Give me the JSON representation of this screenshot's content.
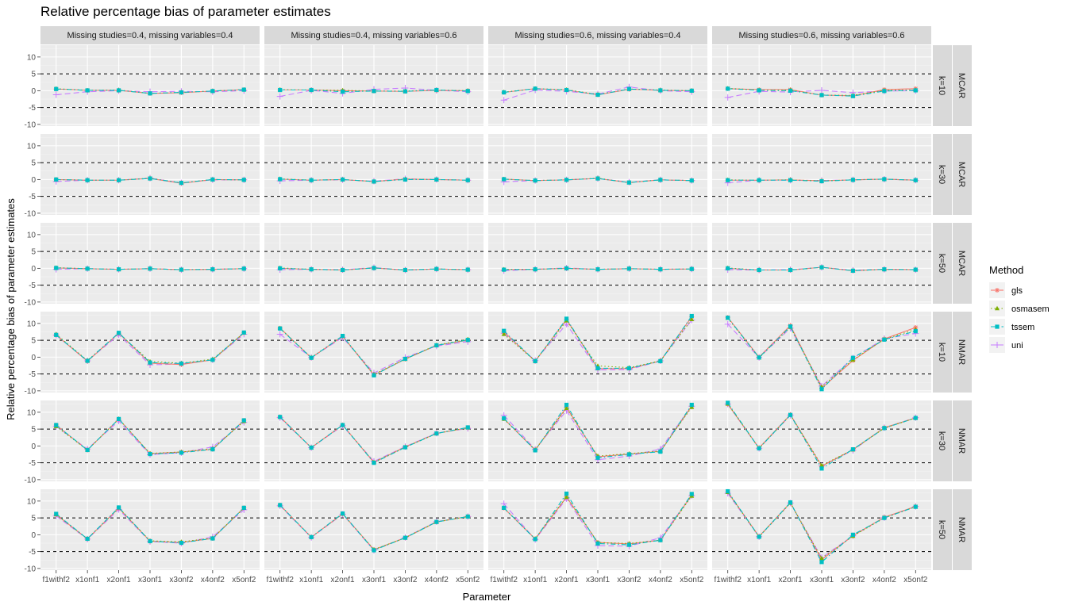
{
  "chart_data": {
    "type": "line",
    "title": "Relative percentage bias of parameter estimates",
    "xlabel": "Parameter",
    "ylabel": "Relative percentage bias of parameter estimates",
    "ylim": [
      -10.5,
      13.5
    ],
    "yticks": [
      -10,
      -5,
      0,
      5,
      10
    ],
    "reference_lines": [
      -5,
      5
    ],
    "categories": [
      "f1withf2",
      "x1onf1",
      "x2onf1",
      "x3onf1",
      "x3onf2",
      "x4onf2",
      "x5onf2"
    ],
    "columns": [
      "Missing studies=0.4, missing variables=0.4",
      "Missing studies=0.4, missing variables=0.6",
      "Missing studies=0.6, missing variables=0.4",
      "Missing studies=0.6, missing variables=0.6"
    ],
    "rows": [
      {
        "k": "k=10",
        "mechanism": "MCAR"
      },
      {
        "k": "k=30",
        "mechanism": "MCAR"
      },
      {
        "k": "k=50",
        "mechanism": "MCAR"
      },
      {
        "k": "k=10",
        "mechanism": "NMAR"
      },
      {
        "k": "k=30",
        "mechanism": "NMAR"
      },
      {
        "k": "k=50",
        "mechanism": "NMAR"
      }
    ],
    "legend": {
      "title": "Method",
      "position": "right",
      "entries": [
        {
          "name": "gls",
          "color": "#F8766D",
          "shape": "asterisk",
          "dash": "solid"
        },
        {
          "name": "osmasem",
          "color": "#7CAE00",
          "shape": "triangle",
          "dash": "dotted"
        },
        {
          "name": "tssem",
          "color": "#00BFC4",
          "shape": "square",
          "dash": "dotdash"
        },
        {
          "name": "uni",
          "color": "#C77CFF",
          "shape": "plus",
          "dash": "longdash"
        }
      ]
    },
    "panels": [
      [
        {
          "gls": [
            0.5,
            0.1,
            0.1,
            -0.8,
            -0.6,
            -0.1,
            0.3
          ],
          "osmasem": [
            0.6,
            0.1,
            0.2,
            -0.8,
            -0.5,
            -0.1,
            0.3
          ],
          "tssem": [
            0.5,
            0.1,
            0.1,
            -0.8,
            -0.5,
            -0.1,
            0.3
          ],
          "uni": [
            -1.2,
            -0.3,
            0.0,
            -0.3,
            -0.2,
            -0.3,
            0.0
          ]
        },
        {
          "gls": [
            0.2,
            0.2,
            0.0,
            -0.1,
            -0.2,
            0.1,
            0.0
          ],
          "osmasem": [
            0.3,
            0.2,
            0.1,
            -0.1,
            -0.1,
            0.2,
            0.0
          ],
          "tssem": [
            0.2,
            0.2,
            -0.3,
            -0.1,
            -0.2,
            0.2,
            -0.1
          ],
          "uni": [
            -1.7,
            0.1,
            -0.8,
            0.4,
            0.8,
            0.1,
            -0.3
          ]
        },
        {
          "gls": [
            -0.5,
            0.6,
            0.2,
            -1.2,
            0.4,
            0.1,
            0.0
          ],
          "osmasem": [
            -0.4,
            0.6,
            0.3,
            -1.1,
            0.5,
            0.2,
            0.0
          ],
          "tssem": [
            -0.5,
            0.6,
            0.2,
            -1.2,
            0.5,
            0.1,
            0.0
          ],
          "uni": [
            -2.8,
            0.2,
            -0.2,
            -1.0,
            1.1,
            0.0,
            -0.3
          ]
        },
        {
          "gls": [
            0.6,
            0.3,
            0.3,
            -1.3,
            -1.5,
            0.3,
            0.6
          ],
          "osmasem": [
            0.7,
            0.2,
            0.2,
            -1.3,
            -1.4,
            0.1,
            0.2
          ],
          "tssem": [
            0.6,
            0.1,
            0.0,
            -1.3,
            -1.6,
            -0.1,
            0.1
          ],
          "uni": [
            -2.0,
            -0.2,
            -0.4,
            0.1,
            -0.6,
            -0.1,
            0.0
          ]
        }
      ],
      [
        {
          "gls": [
            0.0,
            -0.2,
            -0.2,
            0.3,
            -1.1,
            0.0,
            -0.1
          ],
          "osmasem": [
            0.0,
            -0.2,
            -0.2,
            0.4,
            -1.0,
            0.0,
            -0.1
          ],
          "tssem": [
            0.0,
            -0.2,
            -0.2,
            0.3,
            -1.0,
            0.0,
            -0.1
          ],
          "uni": [
            -0.6,
            -0.2,
            -0.2,
            0.4,
            -1.0,
            -0.1,
            -0.1
          ]
        },
        {
          "gls": [
            0.1,
            -0.2,
            0.0,
            -0.6,
            0.1,
            0.0,
            -0.2
          ],
          "osmasem": [
            0.2,
            -0.2,
            0.0,
            -0.6,
            0.1,
            0.0,
            -0.2
          ],
          "tssem": [
            0.1,
            -0.2,
            0.0,
            -0.6,
            0.0,
            0.0,
            -0.2
          ],
          "uni": [
            -0.4,
            -0.2,
            -0.1,
            -0.5,
            0.2,
            0.0,
            -0.2
          ]
        },
        {
          "gls": [
            0.1,
            -0.3,
            -0.1,
            0.3,
            -0.9,
            -0.1,
            -0.3
          ],
          "osmasem": [
            0.1,
            -0.3,
            -0.1,
            0.4,
            -0.9,
            -0.1,
            -0.3
          ],
          "tssem": [
            0.1,
            -0.3,
            -0.1,
            0.3,
            -0.9,
            -0.1,
            -0.3
          ],
          "uni": [
            -0.7,
            -0.3,
            -0.1,
            0.3,
            -0.8,
            -0.1,
            -0.3
          ]
        },
        {
          "gls": [
            -0.2,
            -0.2,
            -0.1,
            -0.4,
            -0.1,
            0.1,
            -0.2
          ],
          "osmasem": [
            -0.1,
            -0.2,
            -0.1,
            -0.4,
            -0.1,
            0.1,
            -0.2
          ],
          "tssem": [
            -0.2,
            -0.2,
            -0.2,
            -0.5,
            -0.1,
            0.1,
            -0.2
          ],
          "uni": [
            -1.0,
            -0.2,
            -0.2,
            -0.3,
            -0.1,
            0.1,
            -0.2
          ]
        }
      ],
      [
        {
          "gls": [
            0.1,
            -0.1,
            -0.3,
            -0.1,
            -0.4,
            -0.3,
            -0.1
          ],
          "osmasem": [
            0.2,
            -0.1,
            -0.3,
            -0.1,
            -0.4,
            -0.3,
            -0.1
          ],
          "tssem": [
            0.1,
            -0.1,
            -0.3,
            -0.1,
            -0.4,
            -0.3,
            -0.1
          ],
          "uni": [
            -0.3,
            -0.1,
            -0.3,
            -0.1,
            -0.4,
            -0.3,
            -0.1
          ]
        },
        {
          "gls": [
            0.0,
            -0.3,
            -0.5,
            0.1,
            -0.5,
            -0.2,
            -0.4
          ],
          "osmasem": [
            0.1,
            -0.3,
            -0.5,
            0.1,
            -0.5,
            -0.2,
            -0.4
          ],
          "tssem": [
            0.0,
            -0.3,
            -0.5,
            0.1,
            -0.5,
            -0.2,
            -0.4
          ],
          "uni": [
            -0.4,
            -0.3,
            -0.4,
            0.2,
            -0.5,
            -0.2,
            -0.4
          ]
        },
        {
          "gls": [
            -0.4,
            -0.3,
            0.0,
            -0.3,
            -0.1,
            -0.3,
            -0.2
          ],
          "osmasem": [
            -0.3,
            -0.3,
            0.0,
            -0.3,
            -0.1,
            -0.3,
            -0.2
          ],
          "tssem": [
            -0.4,
            -0.3,
            0.0,
            -0.3,
            -0.1,
            -0.3,
            -0.2
          ],
          "uni": [
            -0.7,
            -0.3,
            0.1,
            -0.3,
            -0.1,
            -0.3,
            -0.2
          ]
        },
        {
          "gls": [
            0.0,
            -0.5,
            -0.5,
            0.3,
            -0.7,
            -0.3,
            -0.4
          ],
          "osmasem": [
            0.1,
            -0.5,
            -0.5,
            0.3,
            -0.7,
            -0.3,
            -0.4
          ],
          "tssem": [
            0.0,
            -0.5,
            -0.5,
            0.3,
            -0.7,
            -0.3,
            -0.4
          ],
          "uni": [
            -0.4,
            -0.5,
            -0.4,
            0.3,
            -0.6,
            -0.3,
            -0.4
          ]
        }
      ],
      [
        {
          "gls": [
            6.6,
            -1.2,
            7.1,
            -1.8,
            -2.2,
            -0.8,
            7.2
          ],
          "osmasem": [
            6.8,
            -1.0,
            7.1,
            -1.3,
            -1.8,
            -0.6,
            7.2
          ],
          "tssem": [
            6.6,
            -1.1,
            7.2,
            -1.6,
            -1.9,
            -0.8,
            7.3
          ],
          "uni": [
            6.5,
            -1.1,
            6.6,
            -2.3,
            -2.0,
            -0.8,
            6.8
          ]
        },
        {
          "gls": [
            8.6,
            -0.2,
            6.2,
            -5.3,
            -0.6,
            3.5,
            5.0
          ],
          "osmasem": [
            8.6,
            -0.1,
            6.2,
            -5.1,
            -0.6,
            3.6,
            5.3
          ],
          "tssem": [
            8.5,
            -0.2,
            6.3,
            -5.4,
            -0.5,
            3.5,
            5.1
          ],
          "uni": [
            6.8,
            -0.1,
            5.8,
            -4.7,
            -0.1,
            3.3,
            4.6
          ]
        },
        {
          "gls": [
            7.5,
            -1.2,
            11.2,
            -3.4,
            -3.4,
            -1.1,
            12.0
          ],
          "osmasem": [
            6.8,
            -1.1,
            10.8,
            -2.6,
            -3.1,
            -1.1,
            11.2
          ],
          "tssem": [
            7.8,
            -1.2,
            11.4,
            -3.3,
            -3.3,
            -1.2,
            12.2
          ],
          "uni": [
            7.1,
            -1.0,
            9.8,
            -3.8,
            -3.7,
            -1.1,
            11.0
          ]
        },
        {
          "gls": [
            11.8,
            0.0,
            9.4,
            -9.2,
            -1.0,
            5.4,
            8.8
          ],
          "osmasem": [
            11.6,
            -0.2,
            8.9,
            -8.8,
            -0.8,
            5.3,
            8.2
          ],
          "tssem": [
            11.7,
            -0.1,
            9.1,
            -9.5,
            -0.2,
            5.2,
            7.7
          ],
          "uni": [
            9.8,
            -0.1,
            8.6,
            -8.6,
            -0.3,
            5.5,
            7.0
          ]
        }
      ],
      [
        {
          "gls": [
            6.2,
            -1.2,
            8.0,
            -2.3,
            -1.8,
            -1.0,
            7.6
          ],
          "osmasem": [
            5.8,
            -1.2,
            8.0,
            -2.2,
            -1.8,
            -0.8,
            7.3
          ],
          "tssem": [
            6.2,
            -1.2,
            8.0,
            -2.4,
            -2.0,
            -1.0,
            7.6
          ],
          "uni": [
            5.8,
            -0.9,
            7.4,
            -2.6,
            -2.0,
            -0.3,
            7.0
          ]
        },
        {
          "gls": [
            8.6,
            -0.5,
            6.2,
            -4.9,
            -0.3,
            3.7,
            5.4
          ],
          "osmasem": [
            8.6,
            -0.5,
            6.2,
            -4.8,
            -0.4,
            3.7,
            5.4
          ],
          "tssem": [
            8.6,
            -0.5,
            6.2,
            -5.0,
            -0.4,
            3.7,
            5.5
          ],
          "uni": [
            8.4,
            -0.5,
            6.0,
            -4.6,
            -0.2,
            3.8,
            5.2
          ]
        },
        {
          "gls": [
            8.1,
            -1.2,
            11.4,
            -3.2,
            -2.4,
            -1.6,
            11.8
          ],
          "osmasem": [
            8.0,
            -1.1,
            11.2,
            -3.0,
            -2.3,
            -1.5,
            11.5
          ],
          "tssem": [
            8.2,
            -1.3,
            12.2,
            -3.5,
            -2.5,
            -1.7,
            12.2
          ],
          "uni": [
            9.1,
            -1.0,
            10.5,
            -4.1,
            -3.0,
            -0.9,
            11.8
          ]
        },
        {
          "gls": [
            12.4,
            -0.6,
            9.3,
            -6.0,
            -1.1,
            5.4,
            8.3
          ],
          "osmasem": [
            12.5,
            -0.7,
            9.2,
            -5.8,
            -1.1,
            5.3,
            8.3
          ],
          "tssem": [
            12.8,
            -0.7,
            9.2,
            -6.7,
            -1.0,
            5.3,
            8.3
          ],
          "uni": [
            12.4,
            -0.7,
            9.1,
            -5.9,
            -1.3,
            5.4,
            8.4
          ]
        }
      ],
      [
        {
          "gls": [
            6.0,
            -1.2,
            7.9,
            -1.9,
            -2.3,
            -1.1,
            8.0
          ],
          "osmasem": [
            6.0,
            -1.2,
            8.0,
            -1.8,
            -2.1,
            -1.0,
            7.9
          ],
          "tssem": [
            6.2,
            -1.2,
            8.1,
            -1.9,
            -2.4,
            -1.1,
            8.0
          ],
          "uni": [
            5.6,
            -1.3,
            7.5,
            -2.0,
            -2.5,
            -0.6,
            7.4
          ]
        },
        {
          "gls": [
            8.8,
            -0.7,
            6.2,
            -4.4,
            -0.9,
            3.8,
            5.4
          ],
          "osmasem": [
            8.8,
            -0.7,
            6.2,
            -4.4,
            -0.9,
            3.8,
            5.4
          ],
          "tssem": [
            8.8,
            -0.7,
            6.3,
            -4.6,
            -0.9,
            3.8,
            5.4
          ],
          "uni": [
            8.6,
            -0.8,
            6.1,
            -4.6,
            -0.8,
            3.9,
            5.4
          ]
        },
        {
          "gls": [
            7.9,
            -1.2,
            11.2,
            -2.3,
            -2.7,
            -1.6,
            11.8
          ],
          "osmasem": [
            7.9,
            -1.2,
            11.2,
            -2.3,
            -2.6,
            -1.6,
            11.5
          ],
          "tssem": [
            8.0,
            -1.3,
            12.2,
            -2.6,
            -3.0,
            -1.6,
            12.1
          ],
          "uni": [
            9.2,
            -1.4,
            10.7,
            -3.2,
            -3.4,
            -0.9,
            11.6
          ]
        },
        {
          "gls": [
            12.7,
            -0.5,
            9.5,
            -7.4,
            -0.3,
            5.2,
            8.4
          ],
          "osmasem": [
            12.6,
            -0.6,
            9.4,
            -7.0,
            -0.4,
            5.0,
            8.3
          ],
          "tssem": [
            12.9,
            -0.6,
            9.6,
            -8.1,
            0.0,
            5.0,
            8.3
          ],
          "uni": [
            12.3,
            -0.6,
            9.4,
            -6.8,
            -0.3,
            5.1,
            8.4
          ]
        }
      ]
    ]
  }
}
